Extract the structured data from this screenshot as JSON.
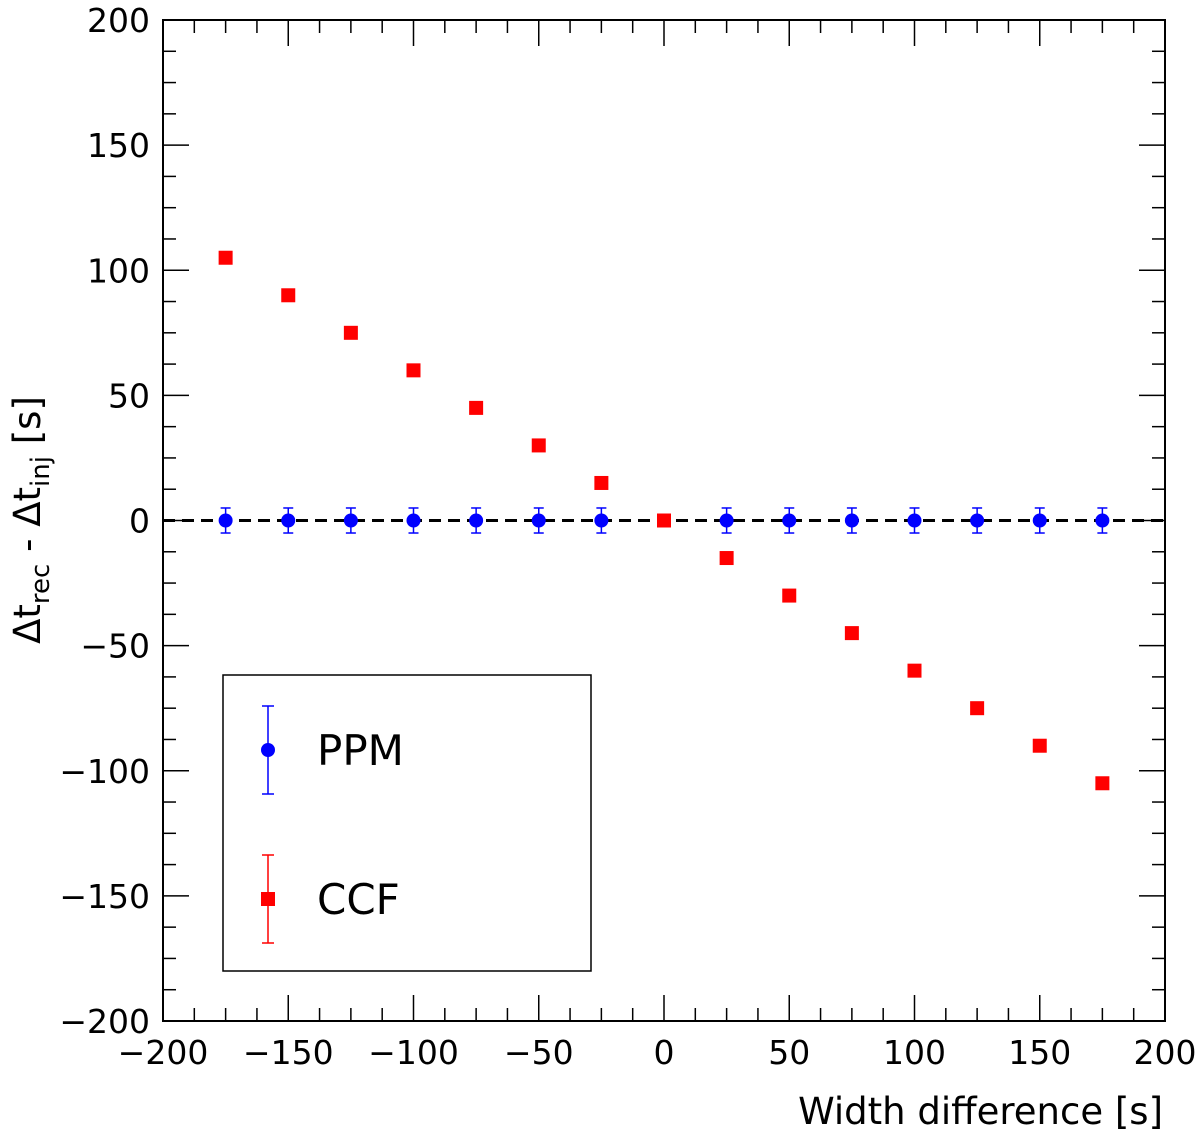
{
  "chart_data": {
    "type": "scatter",
    "xlabel": "Width difference [s]",
    "ylabel": {
      "base1": "Δt",
      "sub1": "rec",
      "separator": " - ",
      "base2": "Δt",
      "sub2": "inj",
      "unit": " [s]"
    },
    "xlim": [
      -200,
      200
    ],
    "ylim": [
      -200,
      200
    ],
    "x_ticks": [
      -200,
      -150,
      -100,
      -50,
      0,
      50,
      100,
      150,
      200
    ],
    "y_ticks": [
      -200,
      -150,
      -100,
      -50,
      0,
      50,
      100,
      150,
      200
    ],
    "x_tick_labels": [
      "−200",
      "−150",
      "−100",
      "−50",
      "0",
      "50",
      "100",
      "150",
      "200"
    ],
    "y_tick_labels": [
      "−200",
      "−150",
      "−100",
      "−50",
      "0",
      "50",
      "100",
      "150",
      "200"
    ],
    "grid": false,
    "reference_line": {
      "y": 0,
      "style": "dashed",
      "color": "#000000"
    },
    "legend": {
      "position": "bottom-left",
      "framed": true
    },
    "series": [
      {
        "name": "PPM",
        "marker": "circle",
        "color": "#0000ff",
        "error": 5,
        "x": [
          -175,
          -150,
          -125,
          -100,
          -75,
          -50,
          -25,
          25,
          50,
          75,
          100,
          125,
          150,
          175
        ],
        "y": [
          0,
          0,
          0,
          0,
          0,
          0,
          0,
          0,
          0,
          0,
          0,
          0,
          0,
          0
        ]
      },
      {
        "name": "CCF",
        "marker": "square",
        "color": "#ff0000",
        "error": 0,
        "x": [
          -175,
          -150,
          -125,
          -100,
          -75,
          -50,
          -25,
          0,
          25,
          50,
          75,
          100,
          125,
          150,
          175
        ],
        "y": [
          105,
          90,
          75,
          60,
          45,
          30,
          15,
          0,
          -15,
          -30,
          -45,
          -60,
          -75,
          -90,
          -105
        ]
      }
    ]
  }
}
